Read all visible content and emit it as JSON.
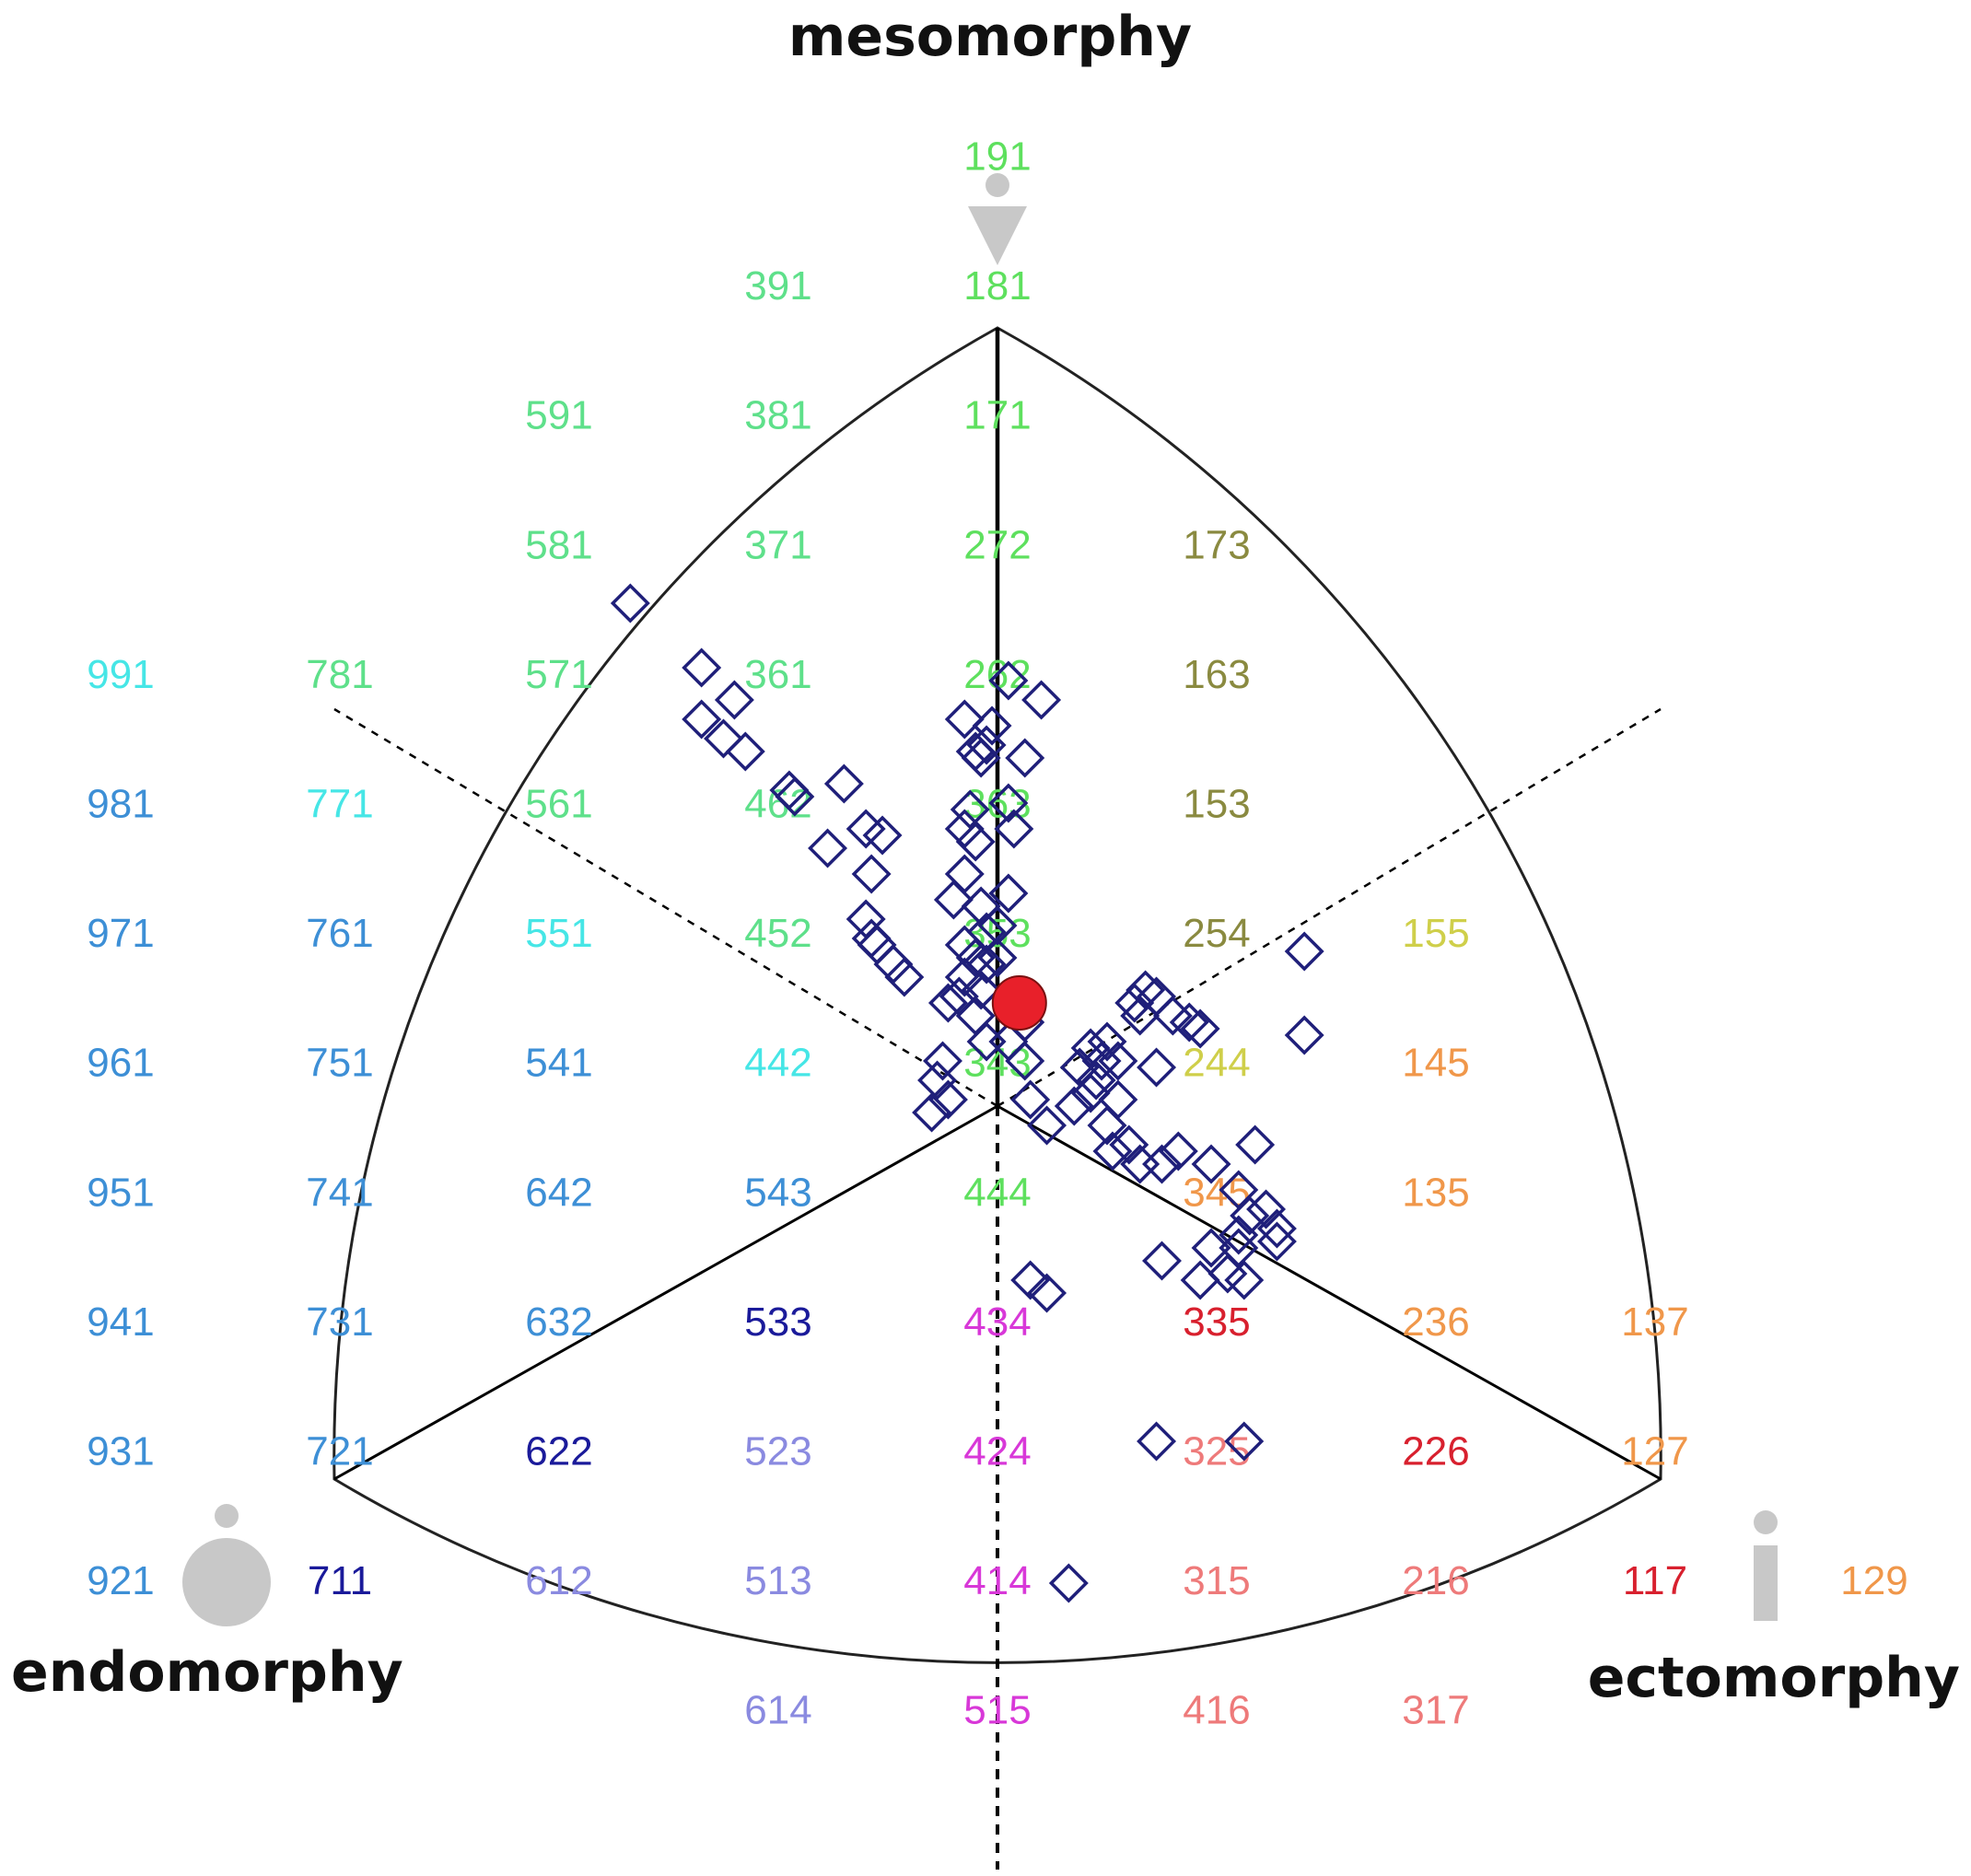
{
  "chart_data": {
    "type": "scatter",
    "title": "",
    "axes": {
      "top": "mesomorphy",
      "left": "endomorphy",
      "right": "ectomorphy"
    },
    "grid": [
      {
        "row": 0,
        "items": [
          {
            "c": 0,
            "t": "191",
            "col": "#5ee05e"
          }
        ]
      },
      {
        "row": 1,
        "items": [
          {
            "c": -1,
            "t": "391",
            "col": "#5ee08a"
          },
          {
            "c": 0,
            "t": "181",
            "col": "#5ee05e"
          }
        ]
      },
      {
        "row": 2,
        "items": [
          {
            "c": -2,
            "t": "591",
            "col": "#5ee08a"
          },
          {
            "c": -1,
            "t": "381",
            "col": "#5ee08a"
          },
          {
            "c": 0,
            "t": "171",
            "col": "#5ee05e"
          }
        ]
      },
      {
        "row": 3,
        "items": [
          {
            "c": -2,
            "t": "581",
            "col": "#5ee08a"
          },
          {
            "c": -1,
            "t": "371",
            "col": "#5ee08a"
          },
          {
            "c": 0,
            "t": "272",
            "col": "#5ee05e"
          },
          {
            "c": 1,
            "t": "173",
            "col": "#8a8a40"
          }
        ]
      },
      {
        "row": 4,
        "items": [
          {
            "c": -4,
            "t": "991",
            "col": "#46e6e6"
          },
          {
            "c": -3,
            "t": "781",
            "col": "#5ee08a"
          },
          {
            "c": -2,
            "t": "571",
            "col": "#5ee08a"
          },
          {
            "c": -1,
            "t": "361",
            "col": "#5ee08a"
          },
          {
            "c": 0,
            "t": "262",
            "col": "#5ee05e"
          },
          {
            "c": 1,
            "t": "163",
            "col": "#8a8a40"
          }
        ]
      },
      {
        "row": 5,
        "items": [
          {
            "c": -4,
            "t": "981",
            "col": "#3d8fd6"
          },
          {
            "c": -3,
            "t": "771",
            "col": "#46e6e6"
          },
          {
            "c": -2,
            "t": "561",
            "col": "#5ee08a"
          },
          {
            "c": -1,
            "t": "462",
            "col": "#5ee08a"
          },
          {
            "c": 0,
            "t": "363",
            "col": "#5ee05e"
          },
          {
            "c": 1,
            "t": "153",
            "col": "#8a8a40"
          }
        ]
      },
      {
        "row": 6,
        "items": [
          {
            "c": -4,
            "t": "971",
            "col": "#3d8fd6"
          },
          {
            "c": -3,
            "t": "761",
            "col": "#3d8fd6"
          },
          {
            "c": -2,
            "t": "551",
            "col": "#46e6e6"
          },
          {
            "c": -1,
            "t": "452",
            "col": "#5ee08a"
          },
          {
            "c": 0,
            "t": "353",
            "col": "#5ee05e"
          },
          {
            "c": 1,
            "t": "254",
            "col": "#8a8a40"
          },
          {
            "c": 2,
            "t": "155",
            "col": "#cfcf4a"
          }
        ]
      },
      {
        "row": 7,
        "items": [
          {
            "c": -4,
            "t": "961",
            "col": "#3d8fd6"
          },
          {
            "c": -3,
            "t": "751",
            "col": "#3d8fd6"
          },
          {
            "c": -2,
            "t": "541",
            "col": "#3d8fd6"
          },
          {
            "c": -1,
            "t": "442",
            "col": "#46e6e6"
          },
          {
            "c": 0,
            "t": "343",
            "col": "#5ee05e"
          },
          {
            "c": 1,
            "t": "244",
            "col": "#cfcf4a"
          },
          {
            "c": 2,
            "t": "145",
            "col": "#f0974a"
          }
        ]
      },
      {
        "row": 8,
        "items": [
          {
            "c": -4,
            "t": "951",
            "col": "#3d8fd6"
          },
          {
            "c": -3,
            "t": "741",
            "col": "#3d8fd6"
          },
          {
            "c": -2,
            "t": "642",
            "col": "#3d8fd6"
          },
          {
            "c": -1,
            "t": "543",
            "col": "#3d8fd6"
          },
          {
            "c": 0,
            "t": "444",
            "col": "#5ee05e"
          },
          {
            "c": 1,
            "t": "345",
            "col": "#f0974a"
          },
          {
            "c": 2,
            "t": "135",
            "col": "#f0974a"
          }
        ]
      },
      {
        "row": 9,
        "items": [
          {
            "c": -4,
            "t": "941",
            "col": "#3d8fd6"
          },
          {
            "c": -3,
            "t": "731",
            "col": "#3d8fd6"
          },
          {
            "c": -2,
            "t": "632",
            "col": "#3d8fd6"
          },
          {
            "c": -1,
            "t": "533",
            "col": "#1a1a9a"
          },
          {
            "c": 0,
            "t": "434",
            "col": "#d838d8"
          },
          {
            "c": 1,
            "t": "335",
            "col": "#d8202e"
          },
          {
            "c": 2,
            "t": "236",
            "col": "#f0974a"
          },
          {
            "c": 3,
            "t": "137",
            "col": "#f0974a"
          }
        ]
      },
      {
        "row": 10,
        "items": [
          {
            "c": -4,
            "t": "931",
            "col": "#3d8fd6"
          },
          {
            "c": -3,
            "t": "721",
            "col": "#3d8fd6"
          },
          {
            "c": -2,
            "t": "622",
            "col": "#1a1a9a"
          },
          {
            "c": -1,
            "t": "523",
            "col": "#8a8ae0"
          },
          {
            "c": 0,
            "t": "424",
            "col": "#d838d8"
          },
          {
            "c": 1,
            "t": "325",
            "col": "#ee7a7a"
          },
          {
            "c": 2,
            "t": "226",
            "col": "#d8202e"
          },
          {
            "c": 3,
            "t": "127",
            "col": "#f0974a"
          }
        ]
      },
      {
        "row": 11,
        "items": [
          {
            "c": -4,
            "t": "921",
            "col": "#3d8fd6"
          },
          {
            "c": -3,
            "t": "711",
            "col": "#1a1a9a"
          },
          {
            "c": -2,
            "t": "612",
            "col": "#8a8ae0"
          },
          {
            "c": -1,
            "t": "513",
            "col": "#8a8ae0"
          },
          {
            "c": 0,
            "t": "414",
            "col": "#d838d8"
          },
          {
            "c": 1,
            "t": "315",
            "col": "#ee7a7a"
          },
          {
            "c": 2,
            "t": "216",
            "col": "#ee7a7a"
          },
          {
            "c": 3,
            "t": "117",
            "col": "#d8202e"
          },
          {
            "c": 4,
            "t": "129",
            "col": "#f0974a"
          }
        ]
      },
      {
        "row": 12,
        "items": [
          {
            "c": -1,
            "t": "614",
            "col": "#8a8ae0"
          },
          {
            "c": 0,
            "t": "515",
            "col": "#d838d8"
          },
          {
            "c": 1,
            "t": "416",
            "col": "#ee7a7a"
          },
          {
            "c": 2,
            "t": "317",
            "col": "#ee7a7a"
          }
        ]
      }
    ],
    "mean": {
      "x": 0.2,
      "y": 0.8
    },
    "points": [
      [
        -3.35,
        3.9
      ],
      [
        -2.7,
        3.4
      ],
      [
        -2.4,
        3.15
      ],
      [
        -2.7,
        3.0
      ],
      [
        -2.5,
        2.85
      ],
      [
        -2.3,
        2.75
      ],
      [
        -1.9,
        2.45
      ],
      [
        -1.85,
        2.4
      ],
      [
        -1.4,
        2.5
      ],
      [
        -1.55,
        2.0
      ],
      [
        -1.2,
        2.15
      ],
      [
        -1.05,
        2.1
      ],
      [
        -1.15,
        1.8
      ],
      [
        -1.2,
        1.45
      ],
      [
        -1.15,
        1.3
      ],
      [
        -1.1,
        1.25
      ],
      [
        -0.95,
        1.1
      ],
      [
        -0.85,
        1.0
      ],
      [
        -0.3,
        3.0
      ],
      [
        -0.2,
        2.75
      ],
      [
        -0.15,
        2.7
      ],
      [
        -0.1,
        2.8
      ],
      [
        -0.05,
        2.95
      ],
      [
        0.1,
        3.3
      ],
      [
        0.4,
        3.15
      ],
      [
        0.25,
        2.7
      ],
      [
        0.1,
        2.35
      ],
      [
        0.15,
        2.15
      ],
      [
        -0.25,
        2.3
      ],
      [
        -0.3,
        2.15
      ],
      [
        -0.2,
        2.05
      ],
      [
        -0.3,
        1.8
      ],
      [
        -0.4,
        1.6
      ],
      [
        -0.15,
        1.55
      ],
      [
        -0.1,
        1.35
      ],
      [
        -0.3,
        1.25
      ],
      [
        -0.2,
        1.15
      ],
      [
        -0.1,
        1.1
      ],
      [
        0.0,
        1.4
      ],
      [
        0.1,
        1.65
      ],
      [
        -0.3,
        1.0
      ],
      [
        -0.35,
        0.85
      ],
      [
        -0.2,
        0.7
      ],
      [
        -0.1,
        0.5
      ],
      [
        -0.45,
        0.8
      ],
      [
        -0.15,
        0.9
      ],
      [
        0.0,
        1.15
      ],
      [
        0.25,
        0.65
      ],
      [
        0.1,
        0.5
      ],
      [
        0.25,
        0.35
      ],
      [
        -0.55,
        0.2
      ],
      [
        -0.6,
        -0.05
      ],
      [
        -0.45,
        0.05
      ],
      [
        -0.5,
        0.35
      ],
      [
        0.3,
        0.05
      ],
      [
        0.45,
        -0.15
      ],
      [
        0.7,
        0.0
      ],
      [
        0.75,
        0.3
      ],
      [
        0.85,
        0.1
      ],
      [
        0.85,
        0.45
      ],
      [
        0.9,
        0.2
      ],
      [
        1.0,
        0.5
      ],
      [
        1.0,
        -0.15
      ],
      [
        1.05,
        -0.35
      ],
      [
        0.95,
        0.35
      ],
      [
        1.1,
        0.05
      ],
      [
        1.1,
        0.35
      ],
      [
        1.25,
        0.8
      ],
      [
        1.3,
        0.7
      ],
      [
        1.35,
        0.9
      ],
      [
        1.2,
        -0.3
      ],
      [
        1.3,
        -0.45
      ],
      [
        1.45,
        0.85
      ],
      [
        1.5,
        -0.45
      ],
      [
        1.65,
        -0.35
      ],
      [
        1.45,
        0.3
      ],
      [
        1.6,
        0.7
      ],
      [
        1.75,
        0.65
      ],
      [
        1.85,
        0.6
      ],
      [
        1.95,
        -0.45
      ],
      [
        1.95,
        -1.1
      ],
      [
        1.85,
        -1.35
      ],
      [
        1.5,
        -1.2
      ],
      [
        2.2,
        -1.0
      ],
      [
        2.25,
        -1.35
      ],
      [
        2.1,
        -1.3
      ],
      [
        2.3,
        -0.85
      ],
      [
        2.35,
        -0.3
      ],
      [
        2.55,
        -1.05
      ],
      [
        2.55,
        -0.95
      ],
      [
        2.45,
        -0.8
      ],
      [
        2.2,
        -1.1
      ],
      [
        2.25,
        -2.6
      ],
      [
        1.45,
        -2.6
      ],
      [
        0.65,
        -3.7
      ],
      [
        0.3,
        -1.35
      ],
      [
        0.45,
        -1.45
      ],
      [
        2.2,
        -0.65
      ],
      [
        2.8,
        1.2
      ],
      [
        2.8,
        0.55
      ]
    ]
  }
}
